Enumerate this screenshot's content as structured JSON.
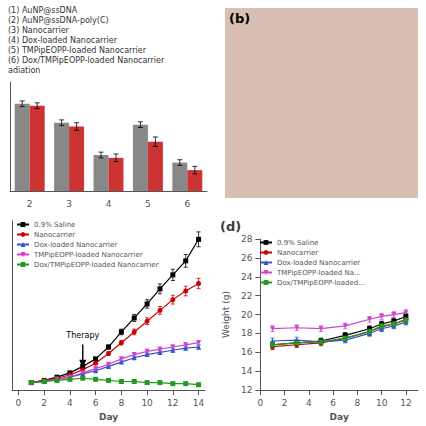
{
  "chart_data": [
    {
      "type": "bar",
      "categories": [
        "2",
        "3",
        "4",
        "5",
        "6"
      ],
      "series": [
        {
          "color": "#888888",
          "values": [
            0.92,
            0.72,
            0.38,
            0.7,
            0.3
          ],
          "errors": [
            0.03,
            0.03,
            0.03,
            0.03,
            0.03
          ]
        },
        {
          "color": "#cc3333",
          "values": [
            0.9,
            0.68,
            0.35,
            0.52,
            0.22
          ],
          "errors": [
            0.03,
            0.04,
            0.04,
            0.05,
            0.04
          ]
        }
      ],
      "ylim": [
        0,
        1.15
      ],
      "tick_labels": "x",
      "grid": false,
      "annotations": [
        "(1) AuNP@ssDNA",
        "(2) AuNP@ssDNA-poly(C)",
        "(3) Nanocarrier",
        "(4) Dox-loaded Nanocarrier",
        "(5) TMPipEOPP-loaded Nanocarrier",
        "(6) Dox/TMPipEOPP-loaded Nanocarrier",
        "adiation"
      ]
    },
    {
      "type": "image",
      "title": "(b)",
      "color": "#d9bfb3"
    },
    {
      "type": "line",
      "x": [
        1,
        2,
        3,
        4,
        5,
        6,
        7,
        8,
        9,
        10,
        11,
        12,
        13,
        14
      ],
      "series": [
        {
          "name": "0.9% Saline",
          "color": "#000000",
          "marker": "square",
          "values": [
            0.05,
            0.07,
            0.1,
            0.14,
            0.2,
            0.27,
            0.38,
            0.52,
            0.65,
            0.78,
            0.92,
            1.05,
            1.18,
            1.38
          ],
          "errors": [
            0.0025,
            0.0035,
            0.005,
            0.007,
            0.01,
            0.0135,
            0.019,
            0.026,
            0.0325,
            0.039,
            0.046,
            0.0525,
            0.059,
            0.069
          ]
        },
        {
          "name": "Nanocarrier",
          "color": "#cc0000",
          "marker": "circle",
          "values": [
            0.05,
            0.07,
            0.09,
            0.12,
            0.17,
            0.23,
            0.32,
            0.42,
            0.52,
            0.62,
            0.72,
            0.82,
            0.9,
            0.97
          ],
          "errors": [
            0.0025,
            0.0035,
            0.0045,
            0.006,
            0.0085,
            0.0115,
            0.016,
            0.021,
            0.026,
            0.031,
            0.036,
            0.041,
            0.045,
            0.0485
          ]
        },
        {
          "name": "Dox-loaded Nanocarrier",
          "color": "#3355cc",
          "marker": "triangle_up",
          "values": [
            0.05,
            0.06,
            0.08,
            0.1,
            0.13,
            0.16,
            0.2,
            0.24,
            0.28,
            0.31,
            0.33,
            0.35,
            0.37,
            0.38
          ],
          "errors": [
            0.0025,
            0.003,
            0.004,
            0.005,
            0.0065,
            0.008,
            0.01,
            0.012,
            0.014,
            0.0155,
            0.0165,
            0.0175,
            0.0185,
            0.019
          ]
        },
        {
          "name": "TMPipEOPP-loaded Nanocarrier",
          "color": "#cc44cc",
          "marker": "triangle_down",
          "values": [
            0.05,
            0.06,
            0.08,
            0.1,
            0.14,
            0.18,
            0.22,
            0.27,
            0.31,
            0.34,
            0.36,
            0.38,
            0.4,
            0.42
          ],
          "errors": [
            0.0025,
            0.003,
            0.004,
            0.005,
            0.007,
            0.009,
            0.011,
            0.0135,
            0.0155,
            0.017,
            0.018,
            0.019,
            0.02,
            0.021
          ]
        },
        {
          "name": "Dox/TMPipEOPP-loaded Nanocarrier",
          "color": "#229922",
          "marker": "square",
          "values": [
            0.05,
            0.06,
            0.07,
            0.08,
            0.09,
            0.08,
            0.07,
            0.06,
            0.06,
            0.05,
            0.05,
            0.04,
            0.04,
            0.03
          ],
          "errors": [
            0.0025,
            0.003,
            0.0035,
            0.004,
            0.0045,
            0.004,
            0.0035,
            0.003,
            0.003,
            0.0025,
            0.0025,
            0.002,
            0.002,
            0.0015
          ]
        }
      ],
      "xlabel": "Day",
      "xlim": [
        -0.5,
        14.5
      ],
      "xticks": [
        0,
        2,
        4,
        6,
        8,
        10,
        12,
        14
      ],
      "ylim": [
        -0.02,
        1.55
      ],
      "tick_labels": "x",
      "legend": "upper left",
      "grid": false,
      "annotations": [
        {
          "text": "Therapy",
          "x": 5,
          "y": 0.18
        }
      ]
    },
    {
      "type": "line",
      "title": "(d)",
      "x": [
        1,
        3,
        5,
        7,
        9,
        10,
        11,
        12
      ],
      "series": [
        {
          "name": "0.9% Saline",
          "color": "#000000",
          "marker": "square",
          "values": [
            16.8,
            17.0,
            17.2,
            17.8,
            18.5,
            19.0,
            19.3,
            19.8
          ],
          "errors": [
            0.3,
            0.3,
            0.3,
            0.3,
            0.3,
            0.3,
            0.3,
            0.3
          ]
        },
        {
          "name": "Nanocarrier",
          "color": "#cc0000",
          "marker": "circle",
          "values": [
            16.6,
            16.8,
            17.0,
            17.5,
            18.2,
            18.7,
            19.0,
            19.5
          ],
          "errors": [
            0.3,
            0.3,
            0.3,
            0.3,
            0.3,
            0.3,
            0.3,
            0.3
          ]
        },
        {
          "name": "Dox-loaded Nanocarrier",
          "color": "#3355cc",
          "marker": "triangle_up",
          "values": [
            17.2,
            17.3,
            17.1,
            17.3,
            18.0,
            18.5,
            18.8,
            19.2
          ],
          "errors": [
            0.3,
            0.3,
            0.3,
            0.3,
            0.3,
            0.3,
            0.3,
            0.3
          ]
        },
        {
          "name": "TMPipEOPP-loaded Na...",
          "color": "#cc44cc",
          "marker": "triangle_down",
          "values": [
            18.5,
            18.6,
            18.5,
            18.8,
            19.5,
            19.8,
            20.0,
            20.2
          ],
          "errors": [
            0.3,
            0.3,
            0.3,
            0.3,
            0.3,
            0.3,
            0.3,
            0.3
          ]
        },
        {
          "name": "Dox/TMPipEOPP-loaded...",
          "color": "#229922",
          "marker": "square",
          "values": [
            16.8,
            17.0,
            17.1,
            17.5,
            18.2,
            18.8,
            19.0,
            19.4
          ],
          "errors": [
            0.3,
            0.3,
            0.3,
            0.3,
            0.3,
            0.3,
            0.3,
            0.3
          ]
        }
      ],
      "xlabel": "Day",
      "ylabel": "Weight (g)",
      "xlim": [
        0,
        13
      ],
      "xticks": [
        0,
        2,
        4,
        6,
        8,
        10,
        12
      ],
      "ylim": [
        12,
        28
      ],
      "yticks": [
        12,
        14,
        16,
        18,
        20,
        22,
        24,
        26,
        28
      ],
      "legend": "upper left",
      "grid": false
    }
  ]
}
